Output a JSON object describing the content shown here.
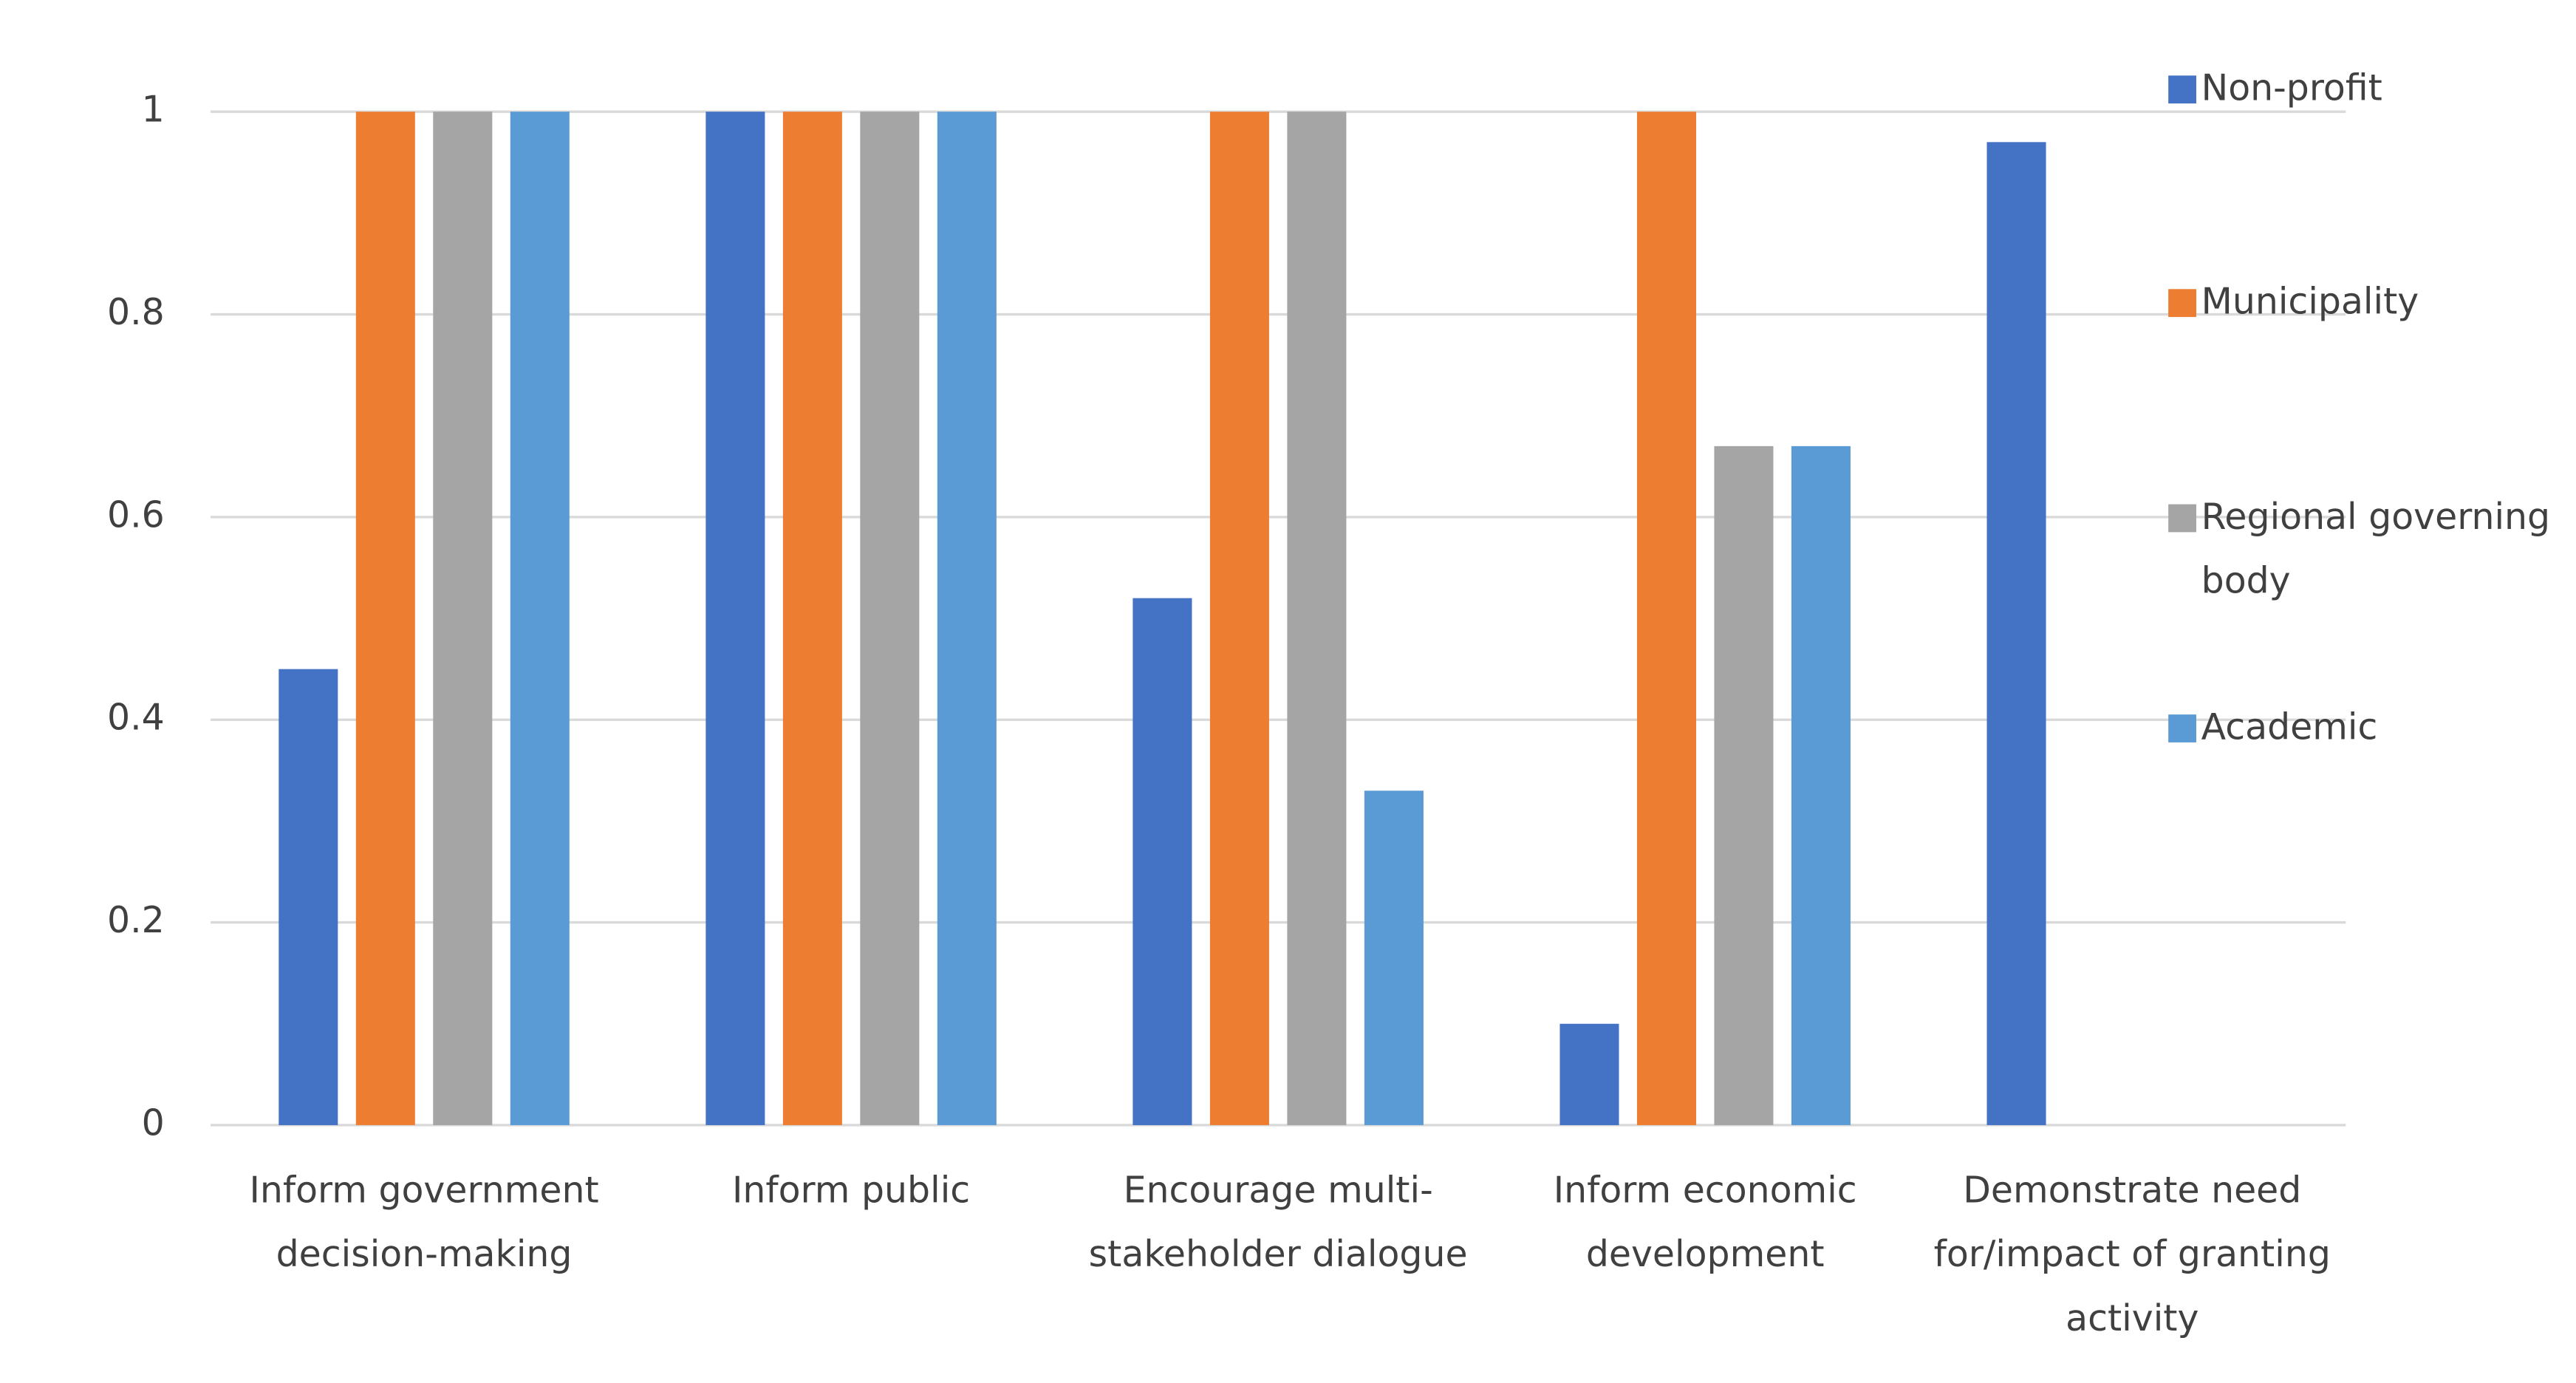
{
  "chart_data": {
    "type": "bar",
    "categories": [
      "Inform government decision-making",
      "Inform public",
      "Encourage multi-stakeholder dialogue",
      "Inform economic development",
      "Demonstrate need for/impact of granting activity"
    ],
    "series": [
      {
        "name": "Non-profit",
        "color": "#4472c4",
        "values": [
          0.45,
          1,
          0.52,
          0.1,
          0.97
        ]
      },
      {
        "name": "Municipality",
        "color": "#ed7d31",
        "values": [
          1,
          1,
          1,
          1,
          0
        ]
      },
      {
        "name": "Regional governing body",
        "color": "#a5a5a5",
        "values": [
          1,
          1,
          1,
          0.67,
          0
        ]
      },
      {
        "name": "Academic",
        "color": "#5b9bd5",
        "values": [
          1,
          1,
          0.33,
          0.67,
          0
        ]
      }
    ],
    "ylim": [
      0,
      1
    ],
    "yticks": [
      0,
      0.2,
      0.4,
      0.6,
      0.8,
      1
    ],
    "grid": true,
    "legend": "right"
  }
}
